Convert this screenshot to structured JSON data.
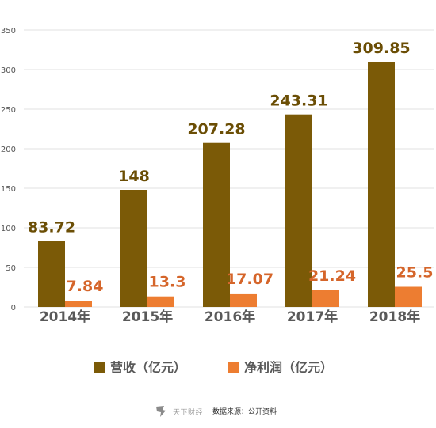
{
  "chart_data": {
    "type": "bar",
    "categories": [
      "2014年",
      "2015年",
      "2016年",
      "2017年",
      "2018年"
    ],
    "series": [
      {
        "name": "营收（亿元）",
        "values": [
          83.72,
          148,
          207.28,
          243.31,
          309.85
        ],
        "labels": [
          "83.72",
          "148",
          "207.28",
          "243.31",
          "309.85"
        ],
        "color": "#7b5a07",
        "label_color": "#6b4e05"
      },
      {
        "name": "净利润（亿元）",
        "values": [
          7.84,
          13.3,
          17.07,
          21.24,
          25.5
        ],
        "labels": [
          "7.84",
          "13.3",
          "17.07",
          "21.24",
          "25.5"
        ],
        "color": "#ed7d31",
        "label_color": "#d5652a"
      }
    ],
    "yticks": [
      "0",
      "50",
      "100",
      "150",
      "200",
      "250",
      "300",
      "350"
    ],
    "ylim": [
      0,
      350
    ],
    "grid": true,
    "legend_position": "bottom"
  },
  "footer": {
    "brand": "天下财经",
    "source": "数据来源：公开资料"
  }
}
